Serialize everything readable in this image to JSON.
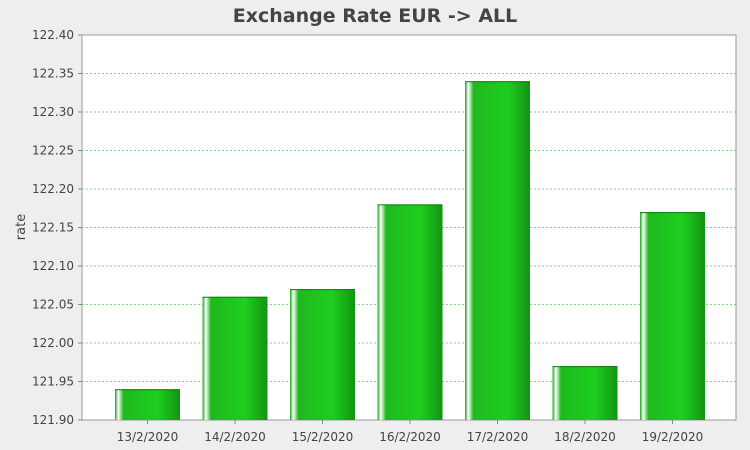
{
  "chart_data": {
    "type": "bar",
    "title": "Exchange Rate EUR -> ALL",
    "xlabel": "",
    "ylabel": "rate",
    "categories": [
      "13/2/2020",
      "14/2/2020",
      "15/2/2020",
      "16/2/2020",
      "17/2/2020",
      "18/2/2020",
      "19/2/2020"
    ],
    "values": [
      121.94,
      122.06,
      122.07,
      122.18,
      122.34,
      121.97,
      122.17
    ],
    "ylim": [
      121.9,
      122.4
    ],
    "yticks": [
      "121.90",
      "121.95",
      "122.00",
      "122.05",
      "122.10",
      "122.15",
      "122.20",
      "122.25",
      "122.30",
      "122.35",
      "122.40"
    ],
    "grid": true,
    "legend": "none",
    "colors": {
      "bar": "#1ec81e",
      "bar_dark": "#17a317",
      "bar_highlight": "#ffffff",
      "grid": "#5cc85c",
      "plot_background": "#ffffff",
      "background": "#eeeeee",
      "text": "#444444"
    }
  }
}
